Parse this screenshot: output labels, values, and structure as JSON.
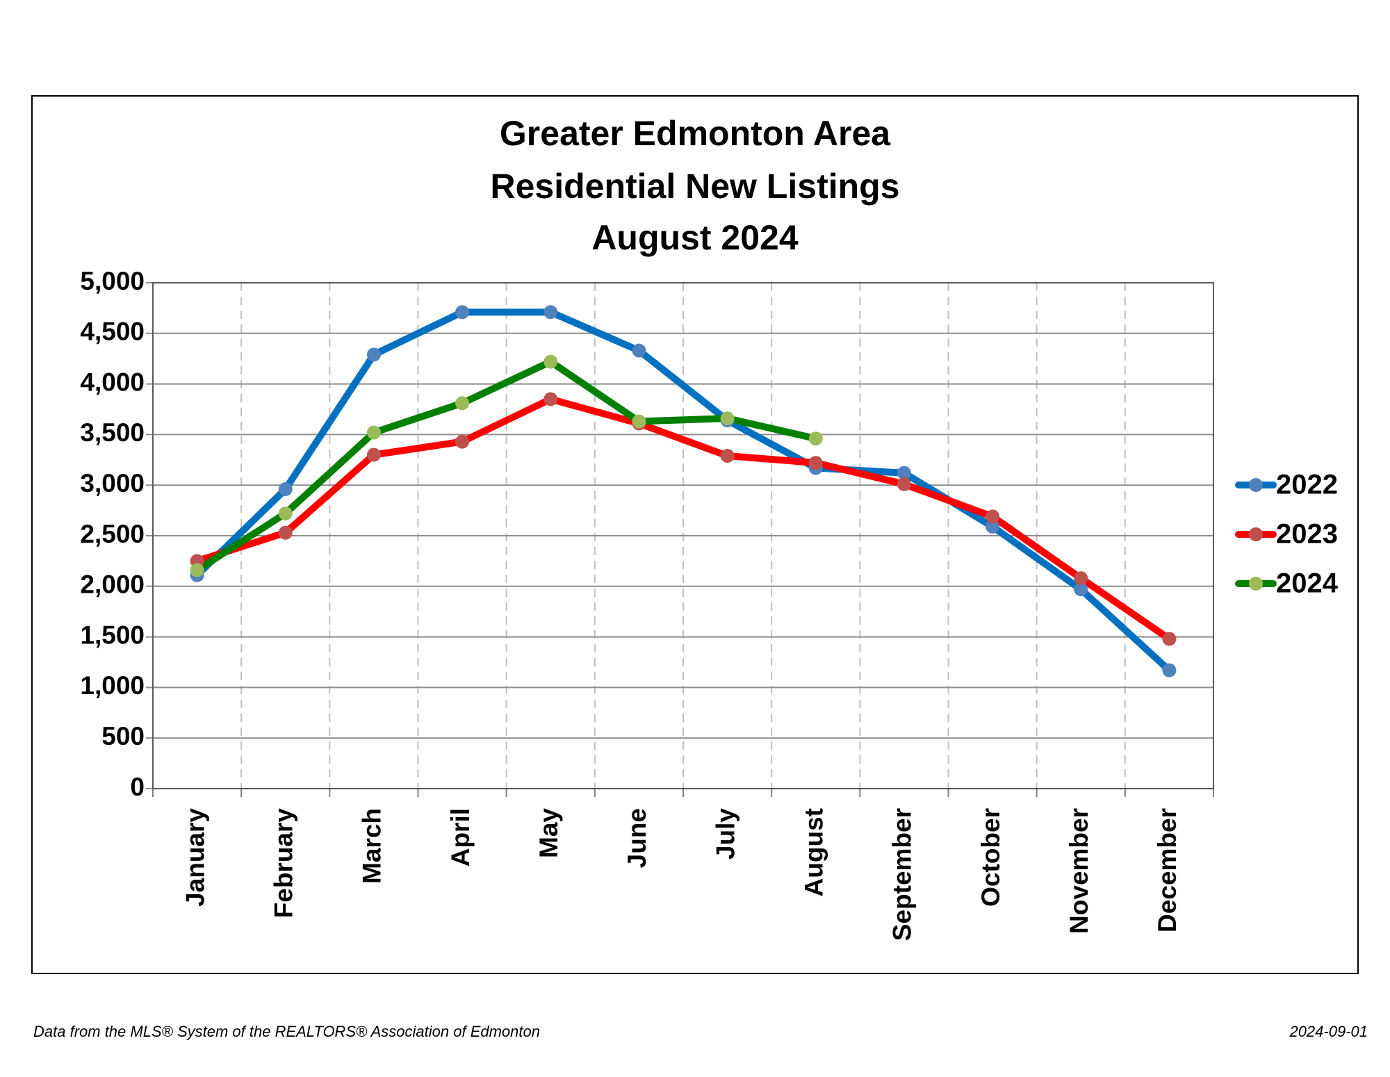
{
  "chart_data": {
    "type": "line",
    "title": [
      "Greater Edmonton Area",
      "Residential New Listings",
      "August 2024"
    ],
    "categories": [
      "January",
      "February",
      "March",
      "April",
      "May",
      "June",
      "July",
      "August",
      "September",
      "October",
      "November",
      "December"
    ],
    "series": [
      {
        "name": "2022",
        "color": "#0070c0",
        "marker_color": "#4f81bd",
        "values": [
          2110,
          2960,
          4290,
          4710,
          4710,
          4330,
          3640,
          3170,
          3120,
          2590,
          1970,
          1170
        ]
      },
      {
        "name": "2023",
        "color": "#ff0000",
        "marker_color": "#c0504d",
        "values": [
          2250,
          2530,
          3300,
          3430,
          3850,
          3610,
          3290,
          3220,
          3010,
          2690,
          2080,
          1480
        ]
      },
      {
        "name": "2024",
        "color": "#008000",
        "marker_color": "#9bbb59",
        "values": [
          2160,
          2720,
          3520,
          3810,
          4220,
          3630,
          3660,
          3460,
          null,
          null,
          null,
          null
        ]
      }
    ],
    "ylim": [
      0,
      5000
    ],
    "yticks": [
      0,
      500,
      {
        "value": 1000,
        "label": "1,000"
      },
      {
        "value": 1500,
        "label": "1,500"
      },
      {
        "value": 2000,
        "label": "2,000"
      },
      {
        "value": 2500,
        "label": "2,500"
      },
      {
        "value": 3000,
        "label": "3,000"
      },
      {
        "value": 3500,
        "label": "3,500"
      },
      {
        "value": 4000,
        "label": "4,000"
      },
      {
        "value": 4500,
        "label": "4,500"
      },
      {
        "value": 5000,
        "label": "5,000"
      }
    ],
    "grid": true,
    "legend": "right",
    "source": "Data from the MLS® System of the REALTORS® Association of Edmonton",
    "date": "2024-09-01"
  }
}
